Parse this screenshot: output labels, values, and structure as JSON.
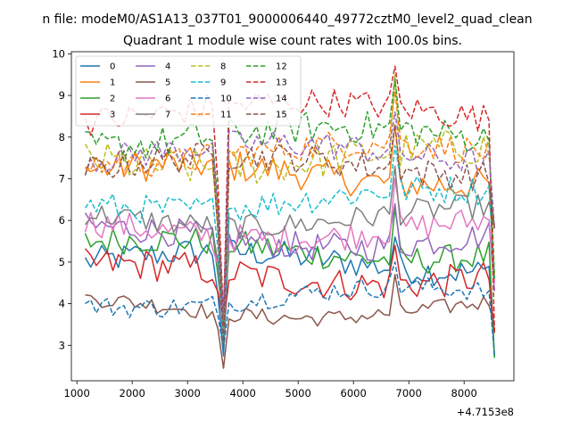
{
  "figure": {
    "suptitle": "n file: modeM0/AS1A13_037T01_9000006440_49772cztM0_level2_quad_clean",
    "offset_label": "+4.7153e8"
  },
  "chart_data": {
    "type": "line",
    "title": "Quadrant 1 module wise count rates with 100.0s bins.",
    "xlabel": "",
    "ylabel": "",
    "xlim": [
      900,
      8900
    ],
    "ylim": [
      2.15,
      10.05
    ],
    "x_ticks": [
      1000,
      2000,
      3000,
      4000,
      5000,
      6000,
      7000,
      8000
    ],
    "y_ticks": [
      3,
      4,
      5,
      6,
      7,
      8,
      9,
      10
    ],
    "x_offset": 471530000,
    "grid": false,
    "legend": {
      "position": "top-left",
      "columns": 4
    },
    "x_start": 1150,
    "x_step": 100,
    "num_points": 75,
    "dip_index": 25,
    "peak_index": 56,
    "series": [
      {
        "name": "0",
        "color": "#1f77b4",
        "dash": "solid",
        "mean": 5.0,
        "amp": 0.35,
        "dip": 2.75,
        "peak": 5.6,
        "end": 2.7
      },
      {
        "name": "1",
        "color": "#ff7f0e",
        "dash": "solid",
        "mean": 7.1,
        "amp": 0.4,
        "dip": 3.3,
        "peak": 8.3,
        "end": 4.6
      },
      {
        "name": "2",
        "color": "#2ca02c",
        "dash": "solid",
        "mean": 5.3,
        "amp": 0.35,
        "dip": 3.5,
        "peak": 6.3,
        "end": 2.7
      },
      {
        "name": "3",
        "color": "#d62728",
        "dash": "solid",
        "mean": 4.7,
        "amp": 0.4,
        "dip": 3.5,
        "peak": 5.4,
        "end": 3.3
      },
      {
        "name": "4",
        "color": "#9467bd",
        "dash": "solid",
        "mean": 5.6,
        "amp": 0.35,
        "dip": 3.6,
        "peak": 6.4,
        "end": 4.3
      },
      {
        "name": "5",
        "color": "#8c564b",
        "dash": "solid",
        "mean": 3.9,
        "amp": 0.2,
        "dip": 2.45,
        "peak": 4.7,
        "end": 3.5
      },
      {
        "name": "6",
        "color": "#e377c2",
        "dash": "solid",
        "mean": 5.8,
        "amp": 0.35,
        "dip": 3.3,
        "peak": 7.0,
        "end": 4.5
      },
      {
        "name": "7",
        "color": "#7f7f7f",
        "dash": "solid",
        "mean": 6.1,
        "amp": 0.3,
        "dip": 3.0,
        "peak": 7.3,
        "end": 5.8
      },
      {
        "name": "8",
        "color": "#bcbd22",
        "dash": "dashed",
        "mean": 7.5,
        "amp": 0.45,
        "dip": 3.9,
        "peak": 9.5,
        "end": 5.8
      },
      {
        "name": "9",
        "color": "#17becf",
        "dash": "dashed",
        "mean": 6.5,
        "amp": 0.35,
        "dip": 3.1,
        "peak": 7.8,
        "end": 4.6
      },
      {
        "name": "10",
        "color": "#1f77b4",
        "dash": "dashed",
        "mean": 4.15,
        "amp": 0.25,
        "dip": 2.9,
        "peak": 5.0,
        "end": 2.75
      },
      {
        "name": "11",
        "color": "#ff7f0e",
        "dash": "dashed",
        "mean": 7.6,
        "amp": 0.35,
        "dip": 3.3,
        "peak": 9.1,
        "end": 4.6
      },
      {
        "name": "12",
        "color": "#2ca02c",
        "dash": "dashed",
        "mean": 8.0,
        "amp": 0.4,
        "dip": 3.5,
        "peak": 9.4,
        "end": 4.6
      },
      {
        "name": "13",
        "color": "#d62728",
        "dash": "dashed",
        "mean": 8.6,
        "amp": 0.35,
        "dip": 3.6,
        "peak": 9.7,
        "end": 3.3
      },
      {
        "name": "14",
        "color": "#9467bd",
        "dash": "dashed",
        "mean": 7.6,
        "amp": 0.35,
        "dip": 3.6,
        "peak": 8.6,
        "end": 5.8
      },
      {
        "name": "15",
        "color": "#8c564b",
        "dash": "dashed",
        "mean": 7.3,
        "amp": 0.35,
        "dip": 3.0,
        "peak": 8.3,
        "end": 5.8
      }
    ]
  }
}
